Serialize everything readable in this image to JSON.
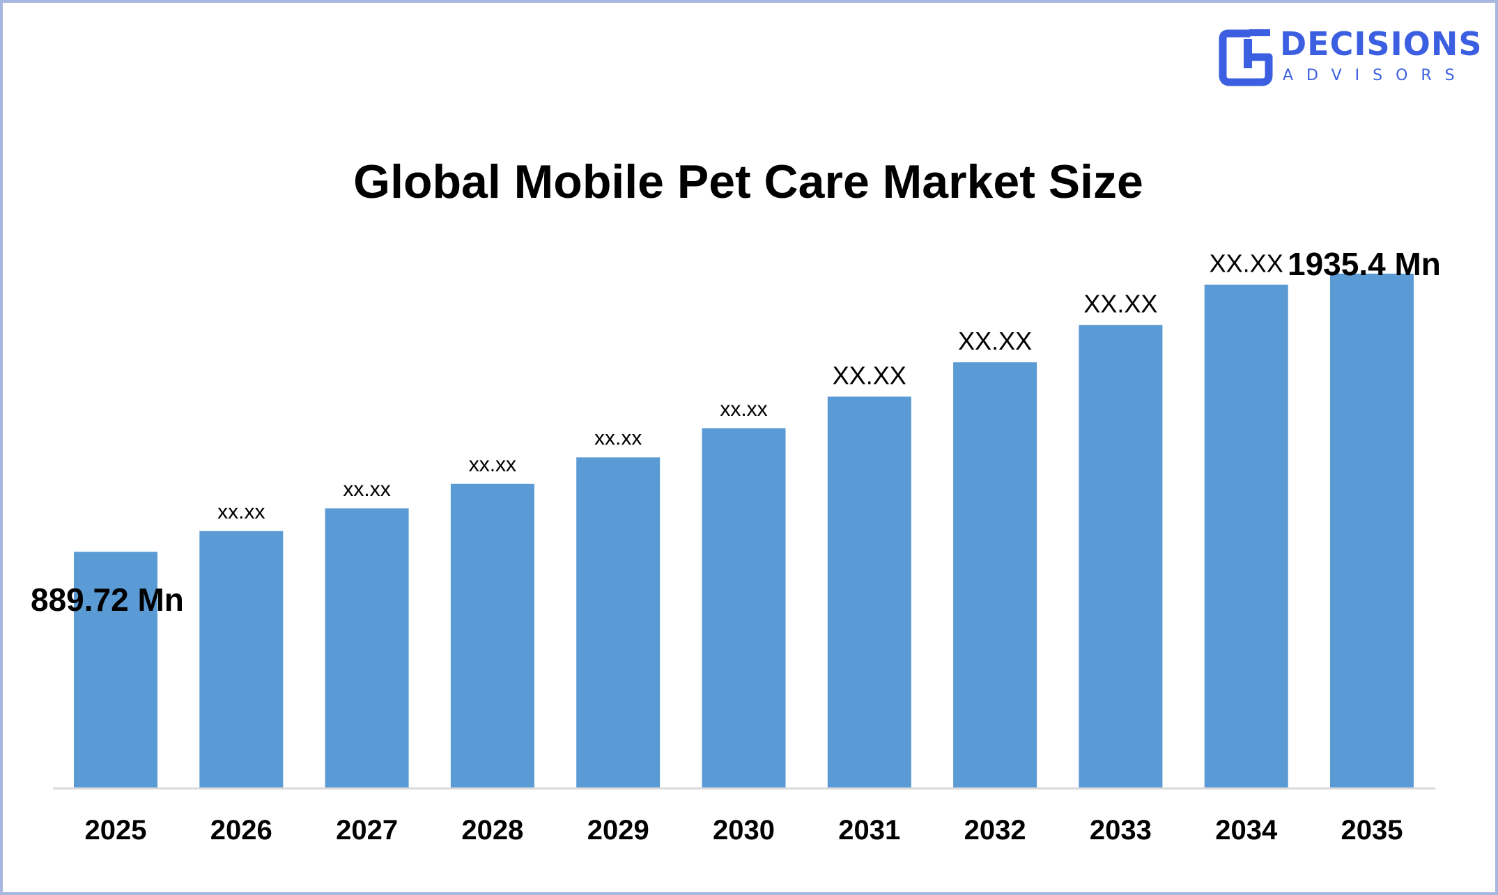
{
  "brand": {
    "name_line1": "DECISIONS",
    "name_line2": "ADVISORS",
    "color": "#3b5fe0"
  },
  "chart_data": {
    "type": "bar",
    "title": "Global Mobile Pet Care Market Size",
    "xlabel": "",
    "ylabel": "",
    "categories": [
      "2025",
      "2026",
      "2027",
      "2028",
      "2029",
      "2030",
      "2031",
      "2032",
      "2033",
      "2034",
      "2035"
    ],
    "values": [
      889.72,
      968,
      1053,
      1145,
      1245,
      1354,
      1473,
      1602,
      1742,
      1894,
      1935.4
    ],
    "data_labels": [
      "889.72 Mn",
      "xx.xx",
      "xx.xx",
      "xx.xx",
      "xx.xx",
      "xx.xx",
      "XX.XX",
      "XX.XX",
      "XX.XX",
      "XX.XX",
      "1935.4 Mn"
    ],
    "ylim": [
      0,
      2100
    ],
    "grid": false,
    "bar_color": "#5b9bd5",
    "axis_color": "#d9d9d9"
  }
}
